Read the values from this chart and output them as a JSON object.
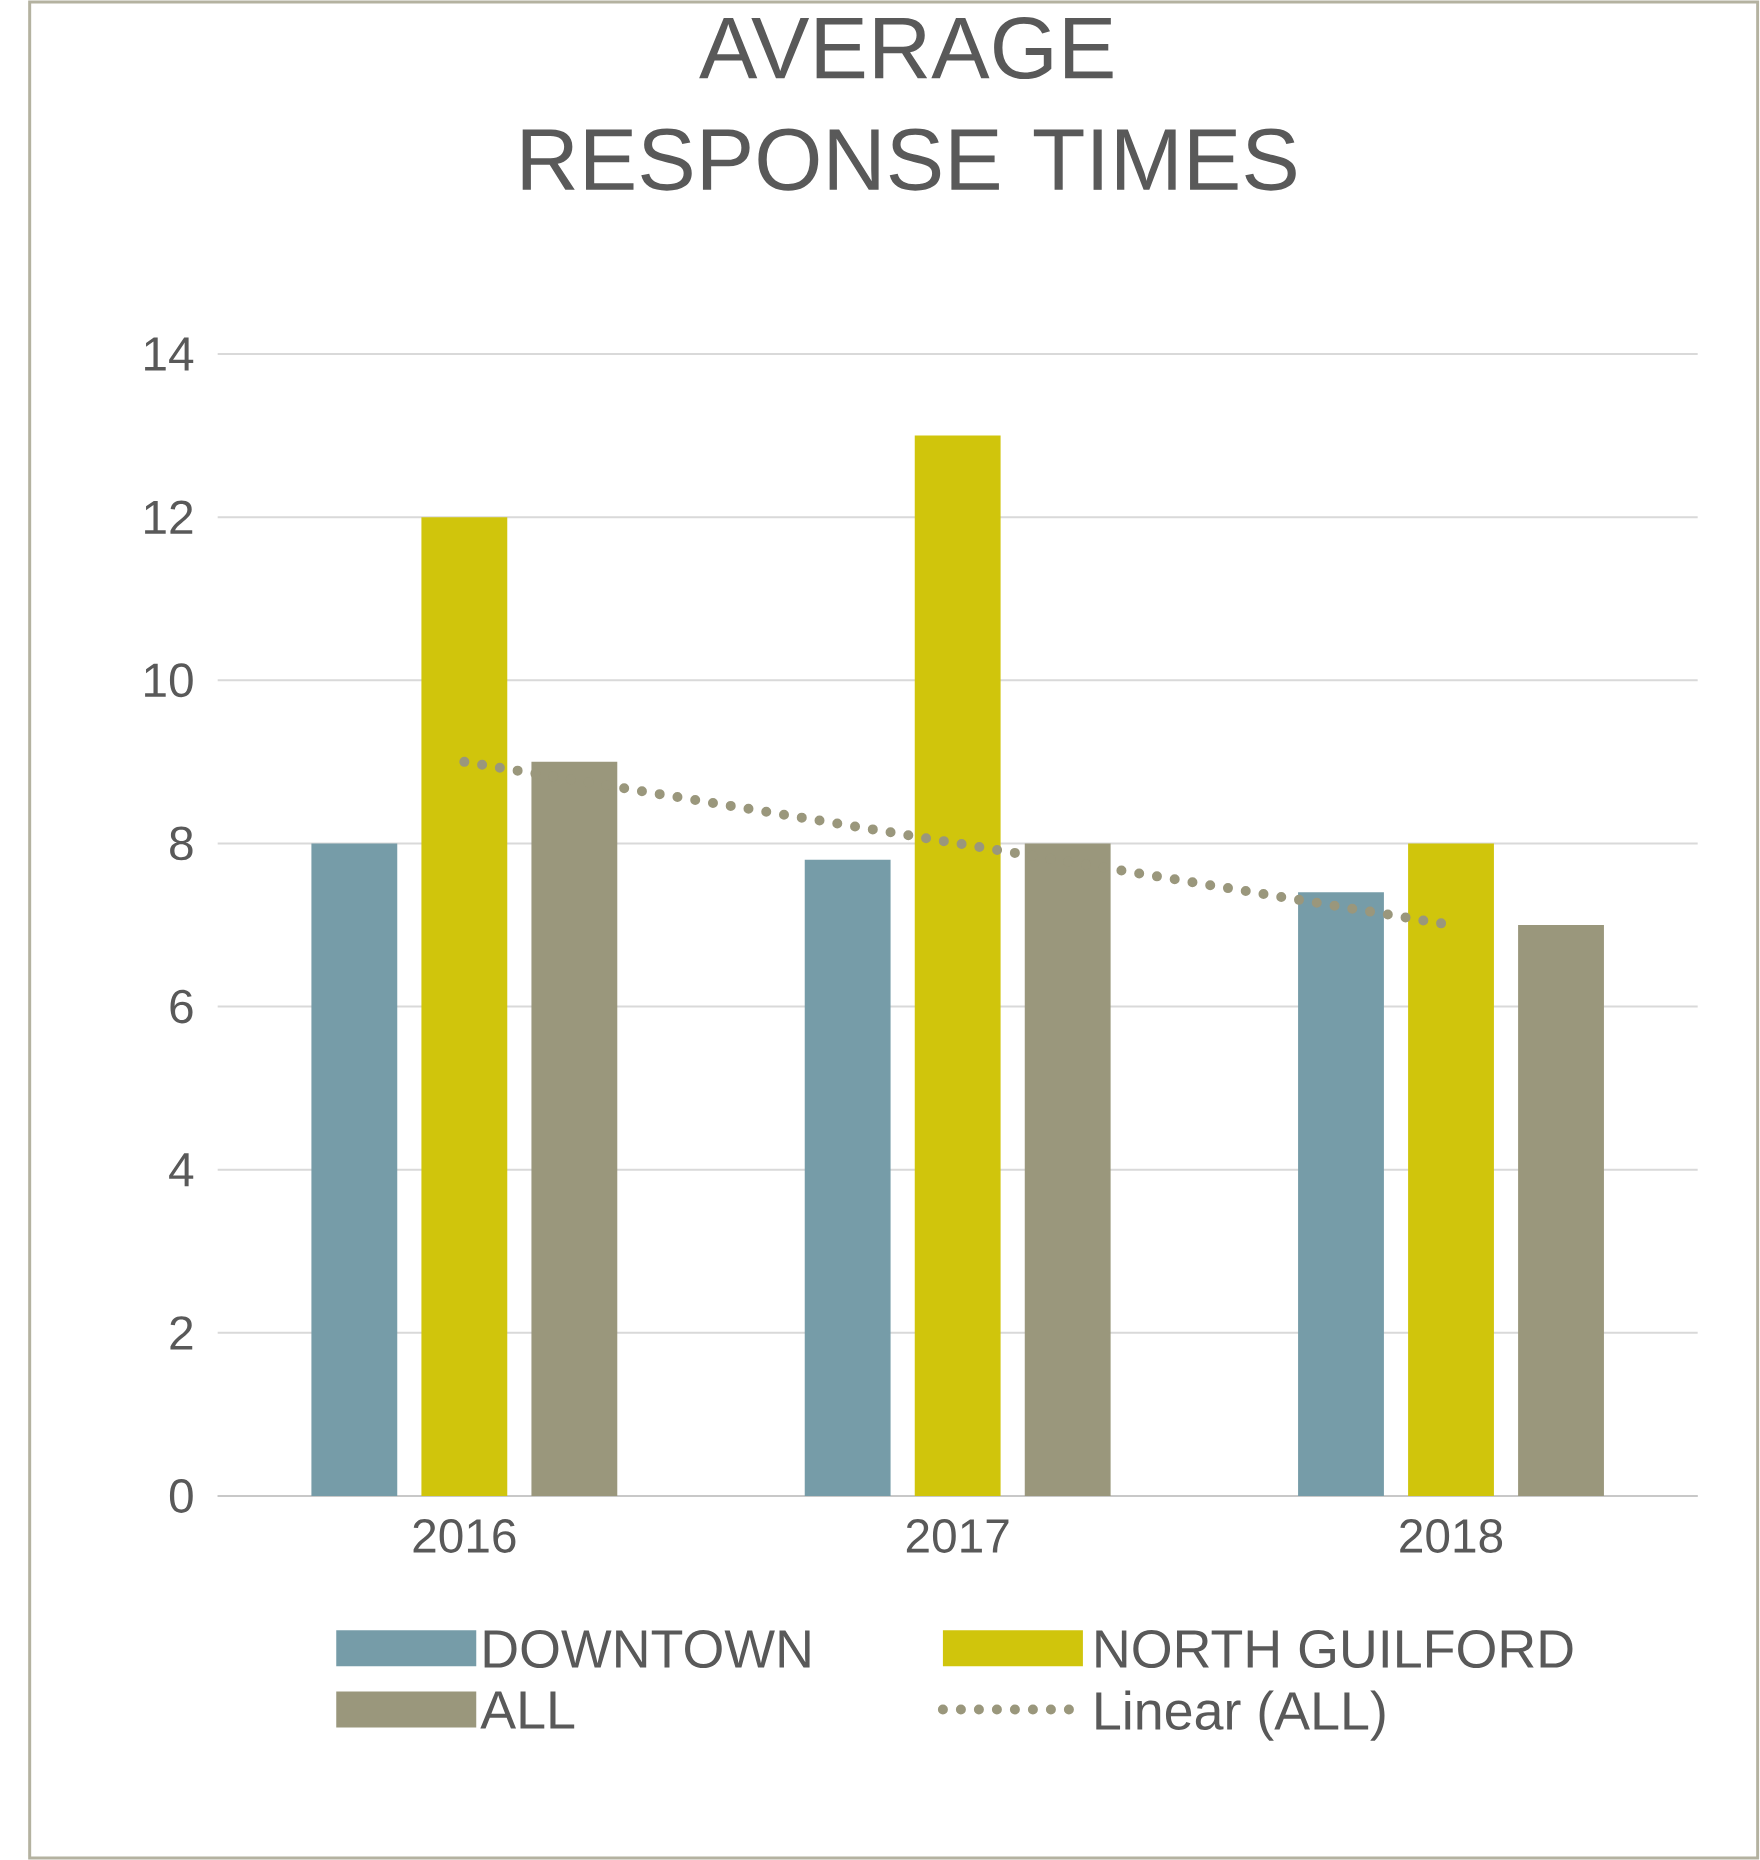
{
  "chart_data": {
    "type": "bar",
    "title": "AVERAGE RESPONSE TIMES",
    "categories": [
      "2016",
      "2017",
      "2018"
    ],
    "series": [
      {
        "name": "DOWNTOWN",
        "color": "#769ca8",
        "values": [
          8,
          7.8,
          7.4
        ]
      },
      {
        "name": "NORTH GUILFORD",
        "color": "#d0c50c",
        "values": [
          12,
          13,
          8
        ]
      },
      {
        "name": "ALL",
        "color": "#9a977c",
        "values": [
          9,
          8,
          7
        ]
      },
      {
        "name": "Linear (ALL)",
        "type": "line",
        "line_style": "dotted",
        "color": "#9a977c",
        "values": [
          9,
          8,
          7
        ]
      }
    ],
    "ylim": [
      0,
      14
    ],
    "yticks": [
      0,
      2,
      4,
      6,
      8,
      10,
      12,
      14
    ],
    "grid": "y",
    "legend": "bottom"
  }
}
